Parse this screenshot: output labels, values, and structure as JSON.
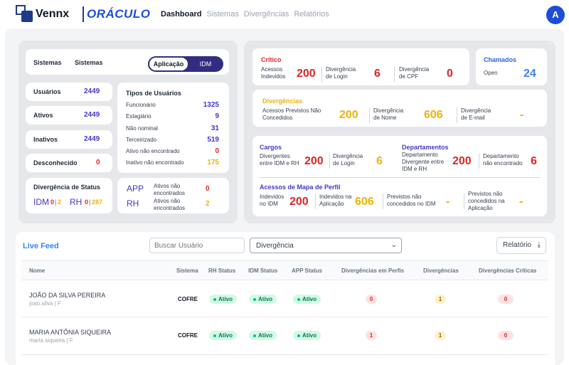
{
  "brand": {
    "name": "Vennx",
    "product": "ORÁCULO"
  },
  "nav": {
    "items": [
      "Dashboard",
      "Sistemas",
      "Divergências",
      "Relatórios"
    ]
  },
  "user": {
    "avatar_initial": "A"
  },
  "left": {
    "header": {
      "label1": "Sistemas",
      "label2": "Sistemas",
      "toggle_on": "Aplicação",
      "toggle_off": "IDM"
    },
    "stats": [
      {
        "label": "Usuários",
        "value": "2449"
      },
      {
        "label": "Ativos",
        "value": "2449"
      },
      {
        "label": "Inativos",
        "value": "2449"
      },
      {
        "label": "Desconhecido",
        "value": "0"
      }
    ],
    "types": {
      "title": "Tipos de Usuários",
      "items": [
        {
          "label": "Funcionário",
          "value": "1325"
        },
        {
          "label": "Estagiário",
          "value": "9"
        },
        {
          "label": "Não nominal",
          "value": "31"
        },
        {
          "label": "Terceirizado",
          "value": "519"
        },
        {
          "label": "Ativo não encontrado",
          "value": "0"
        },
        {
          "label": "Inativo não encontrado",
          "value": "175"
        }
      ]
    },
    "status_div": {
      "title": "Divergência de Status",
      "idm": "IDM",
      "idm_a": "0",
      "idm_b": "2",
      "rh": "RH",
      "rh_a": "0",
      "rh_b": "287"
    },
    "app_rh": {
      "app": "APP",
      "app_label": "Ativos não encontrados",
      "app_value": "0",
      "rh": "RH",
      "rh_label": "Ativos não encontrados",
      "rh_value": "2"
    }
  },
  "right": {
    "critico": {
      "title": "Crítico",
      "items": [
        {
          "label": "Acessos Indevidos",
          "value": "200"
        },
        {
          "label": "Divergência de Login",
          "value": "6"
        },
        {
          "label": "Divergência de CPF",
          "value": "0"
        }
      ]
    },
    "chamados": {
      "title": "Chamados",
      "label": "Open",
      "value": "24"
    },
    "divergencias": {
      "title": "Divergências",
      "items": [
        {
          "label": "Acessos Previstos Não Concedidos",
          "value": "200"
        },
        {
          "label": "Divergência de Nome",
          "value": "606"
        },
        {
          "label": "Divergência de E-mail",
          "value": "-"
        }
      ]
    },
    "cargos": {
      "title": "Cargos",
      "items": [
        {
          "label": "Divergentes entre IDM e RH",
          "value": "200"
        },
        {
          "label": "Divergência de Login",
          "value": "6"
        }
      ]
    },
    "departamentos": {
      "title": "Departamentos",
      "items": [
        {
          "label": "Departamento Divergente entre IDM e RH",
          "value": "200"
        },
        {
          "label": "Departamento não encontrado",
          "value": "6"
        }
      ]
    },
    "mapa": {
      "title": "Acessos de Mapa de Perfil",
      "items": [
        {
          "label": "Indevidos no IDM",
          "value": "200"
        },
        {
          "label": "Indevidos na Aplicação",
          "value": "606"
        },
        {
          "label": "Previstos não concedidos no IDM",
          "value": "-"
        },
        {
          "label": "Previstos não concedidos na Aplicação",
          "value": "-"
        }
      ]
    }
  },
  "feed": {
    "title": "Live Feed",
    "search_placeholder": "Buscar Usuário",
    "filter_value": "Divergência",
    "report_label": "Relatório",
    "columns": [
      "Nome",
      "Sistema",
      "RH Status",
      "IDM Status",
      "APP Status",
      "Divergências em Perfis",
      "Divergências",
      "Divergências Críticas"
    ],
    "rows": [
      {
        "name": "JOÃO DA SILVA PEREIRA",
        "sub": "joao.silva | F",
        "system": "COFRE",
        "rh": "Ativo",
        "idm": "Ativo",
        "app": "Ativo",
        "perfis": "0",
        "div": "1",
        "crit": "0"
      },
      {
        "name": "MARIA ANTÔNIA SIQUEIRA",
        "sub": "maria.siqueira | F",
        "system": "COFRE",
        "rh": "Ativo",
        "idm": "Ativo",
        "app": "Ativo",
        "perfis": "1",
        "div": "1",
        "crit": "0"
      }
    ]
  },
  "colors": {
    "primary": "#1d4ed8",
    "critical": "#dc2626",
    "warning": "#eab308",
    "success": "#10b981"
  }
}
